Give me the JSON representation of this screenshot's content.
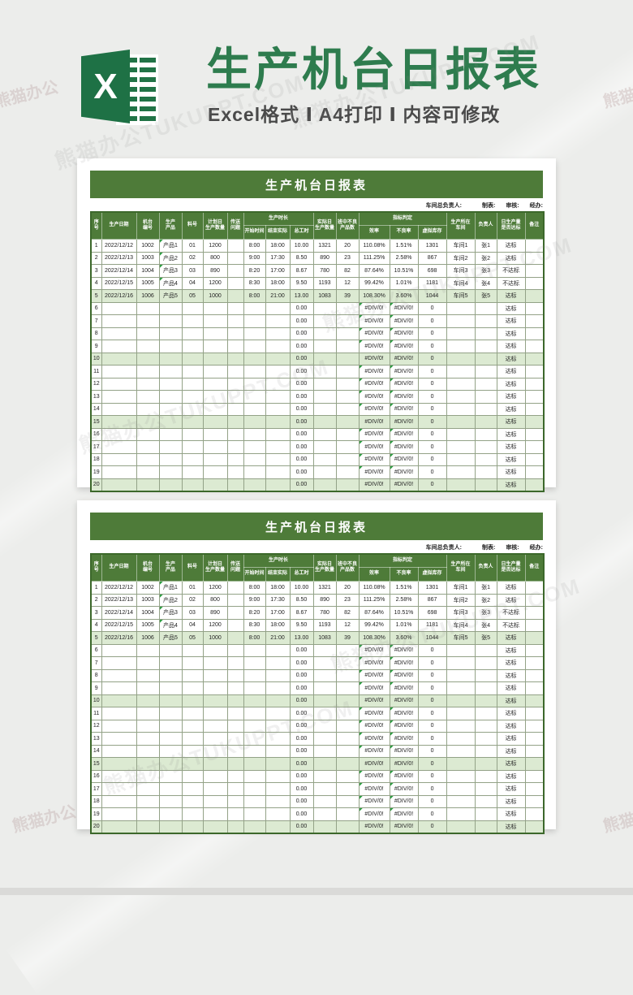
{
  "page": {
    "watermark": "熊猫办公TUKUPPT.COM",
    "brand": "熊猫办公"
  },
  "header": {
    "logo_letter": "X",
    "title": "生产机台日报表",
    "subtitle": "Excel格式 Ⅰ A4打印 Ⅰ 内容可修改"
  },
  "card": {
    "title": "生产机台日报表",
    "meta": {
      "labels": [
        "车间总负责人:",
        "制表:",
        "审核:",
        "经办:"
      ]
    },
    "table": {
      "group_headers": {
        "production_time": "生产时长",
        "metrics": "指标判定"
      },
      "columns": [
        "序号",
        "生产日期",
        "机台\n编号",
        "生产\n产品",
        "料号",
        "计划日\n生产数量",
        "传送\n问题",
        "开始时间",
        "结束实际",
        "总工时",
        "实际日\n生产数量",
        "班中不良\n产品数",
        "效率",
        "不良率",
        "虚拟库存",
        "生产所在\n车间",
        "负责人",
        "日生产量\n是否达标",
        "备注"
      ],
      "rows": [
        [
          "1",
          "2022/12/12",
          "1002",
          "产品1",
          "01",
          "1200",
          "",
          "8:00",
          "18:00",
          "10.00",
          "1321",
          "20",
          "110.08%",
          "1.51%",
          "1301",
          "车间1",
          "张1",
          "达标",
          ""
        ],
        [
          "2",
          "2022/12/13",
          "1003",
          "产品2",
          "02",
          "800",
          "",
          "9:00",
          "17:30",
          "8.50",
          "890",
          "23",
          "111.25%",
          "2.58%",
          "867",
          "车间2",
          "张2",
          "达标",
          ""
        ],
        [
          "3",
          "2022/12/14",
          "1004",
          "产品3",
          "03",
          "890",
          "",
          "8:20",
          "17:00",
          "8.67",
          "780",
          "82",
          "87.64%",
          "10.51%",
          "698",
          "车间3",
          "张3",
          "不达标",
          ""
        ],
        [
          "4",
          "2022/12/15",
          "1005",
          "产品4",
          "04",
          "1200",
          "",
          "8:30",
          "18:00",
          "9.50",
          "1193",
          "12",
          "99.42%",
          "1.01%",
          "1181",
          "车间4",
          "张4",
          "不达标",
          ""
        ],
        [
          "5",
          "2022/12/16",
          "1006",
          "产品5",
          "05",
          "1000",
          "",
          "8:00",
          "21:00",
          "13.00",
          "1083",
          "39",
          "108.30%",
          "3.60%",
          "1044",
          "车间5",
          "张5",
          "达标",
          ""
        ],
        [
          "6",
          "",
          "",
          "",
          "",
          "",
          "",
          "",
          "",
          "0.00",
          "",
          "",
          "#DIV/0!",
          "#DIV/0!",
          "0",
          "",
          "",
          "达标",
          ""
        ],
        [
          "7",
          "",
          "",
          "",
          "",
          "",
          "",
          "",
          "",
          "0.00",
          "",
          "",
          "#DIV/0!",
          "#DIV/0!",
          "0",
          "",
          "",
          "达标",
          ""
        ],
        [
          "8",
          "",
          "",
          "",
          "",
          "",
          "",
          "",
          "",
          "0.00",
          "",
          "",
          "#DIV/0!",
          "#DIV/0!",
          "0",
          "",
          "",
          "达标",
          ""
        ],
        [
          "9",
          "",
          "",
          "",
          "",
          "",
          "",
          "",
          "",
          "0.00",
          "",
          "",
          "#DIV/0!",
          "#DIV/0!",
          "0",
          "",
          "",
          "达标",
          ""
        ],
        [
          "10",
          "",
          "",
          "",
          "",
          "",
          "",
          "",
          "",
          "0.00",
          "",
          "",
          "#DIV/0!",
          "#DIV/0!",
          "0",
          "",
          "",
          "达标",
          ""
        ],
        [
          "11",
          "",
          "",
          "",
          "",
          "",
          "",
          "",
          "",
          "0.00",
          "",
          "",
          "#DIV/0!",
          "#DIV/0!",
          "0",
          "",
          "",
          "达标",
          ""
        ],
        [
          "12",
          "",
          "",
          "",
          "",
          "",
          "",
          "",
          "",
          "0.00",
          "",
          "",
          "#DIV/0!",
          "#DIV/0!",
          "0",
          "",
          "",
          "达标",
          ""
        ],
        [
          "13",
          "",
          "",
          "",
          "",
          "",
          "",
          "",
          "",
          "0.00",
          "",
          "",
          "#DIV/0!",
          "#DIV/0!",
          "0",
          "",
          "",
          "达标",
          ""
        ],
        [
          "14",
          "",
          "",
          "",
          "",
          "",
          "",
          "",
          "",
          "0.00",
          "",
          "",
          "#DIV/0!",
          "#DIV/0!",
          "0",
          "",
          "",
          "达标",
          ""
        ],
        [
          "15",
          "",
          "",
          "",
          "",
          "",
          "",
          "",
          "",
          "0.00",
          "",
          "",
          "#DIV/0!",
          "#DIV/0!",
          "0",
          "",
          "",
          "达标",
          ""
        ],
        [
          "16",
          "",
          "",
          "",
          "",
          "",
          "",
          "",
          "",
          "0.00",
          "",
          "",
          "#DIV/0!",
          "#DIV/0!",
          "0",
          "",
          "",
          "达标",
          ""
        ],
        [
          "17",
          "",
          "",
          "",
          "",
          "",
          "",
          "",
          "",
          "0.00",
          "",
          "",
          "#DIV/0!",
          "#DIV/0!",
          "0",
          "",
          "",
          "达标",
          ""
        ],
        [
          "18",
          "",
          "",
          "",
          "",
          "",
          "",
          "",
          "",
          "0.00",
          "",
          "",
          "#DIV/0!",
          "#DIV/0!",
          "0",
          "",
          "",
          "达标",
          ""
        ],
        [
          "19",
          "",
          "",
          "",
          "",
          "",
          "",
          "",
          "",
          "0.00",
          "",
          "",
          "#DIV/0!",
          "#DIV/0!",
          "0",
          "",
          "",
          "达标",
          ""
        ],
        [
          "20",
          "",
          "",
          "",
          "",
          "",
          "",
          "",
          "",
          "0.00",
          "",
          "",
          "#DIV/0!",
          "#DIV/0!",
          "0",
          "",
          "",
          "达标",
          ""
        ]
      ]
    }
  },
  "cards_rendered": 2
}
